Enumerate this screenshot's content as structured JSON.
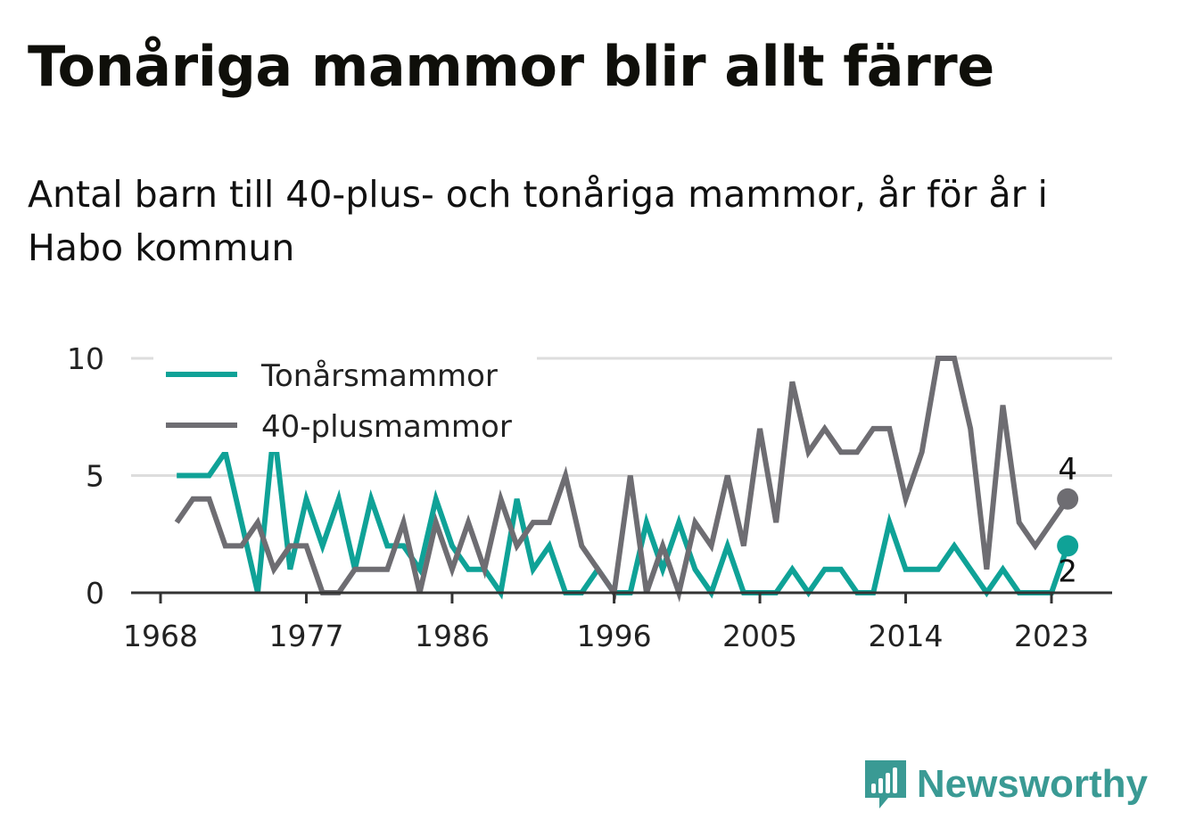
{
  "title": "Tonåriga mammor blir allt färre",
  "subtitle": "Antal barn till 40-plus- och tonåriga mammor, år för år i Habo kommun",
  "brand": {
    "name": "Newsworthy",
    "color": "#3a9a94",
    "icon": "bar-chart-bubble-icon"
  },
  "chart_data": {
    "type": "line",
    "x": [
      1969,
      1970,
      1971,
      1972,
      1973,
      1974,
      1975,
      1976,
      1977,
      1978,
      1979,
      1980,
      1981,
      1982,
      1983,
      1984,
      1985,
      1986,
      1987,
      1988,
      1989,
      1990,
      1991,
      1992,
      1993,
      1994,
      1995,
      1996,
      1997,
      1998,
      1999,
      2000,
      2001,
      2002,
      2003,
      2004,
      2005,
      2006,
      2007,
      2008,
      2009,
      2010,
      2011,
      2012,
      2013,
      2014,
      2015,
      2016,
      2017,
      2018,
      2019,
      2020,
      2021,
      2022,
      2023,
      2024
    ],
    "series": [
      {
        "name": "Tonårsmammor",
        "color": "#0fa297",
        "values": [
          5,
          5,
          5,
          6,
          3,
          0,
          7,
          1,
          4,
          2,
          4,
          1,
          4,
          2,
          2,
          1,
          4,
          2,
          1,
          1,
          0,
          4,
          1,
          2,
          0,
          0,
          1,
          0,
          0,
          3,
          1,
          3,
          1,
          0,
          2,
          0,
          0,
          0,
          1,
          0,
          1,
          1,
          0,
          0,
          3,
          1,
          1,
          1,
          2,
          1,
          0,
          1,
          0,
          0,
          0,
          2
        ]
      },
      {
        "name": "40-plusmammor",
        "color": "#6e6d72",
        "values": [
          3,
          4,
          4,
          2,
          2,
          3,
          1,
          2,
          2,
          0,
          0,
          1,
          1,
          1,
          3,
          0,
          3,
          1,
          3,
          1,
          4,
          2,
          3,
          3,
          5,
          2,
          1,
          0,
          5,
          0,
          2,
          0,
          3,
          2,
          5,
          2,
          7,
          3,
          9,
          6,
          7,
          6,
          6,
          7,
          7,
          4,
          6,
          10,
          10,
          7,
          1,
          8,
          3,
          2,
          3,
          4
        ]
      }
    ],
    "xticks": [
      "1968",
      "1977",
      "1986",
      "1996",
      "2005",
      "2014",
      "2023"
    ],
    "yticks": [
      "0",
      "5",
      "10"
    ],
    "ylim": [
      0,
      10
    ],
    "grid": true,
    "legend": "top-left",
    "end_labels": [
      "4",
      "2"
    ]
  }
}
